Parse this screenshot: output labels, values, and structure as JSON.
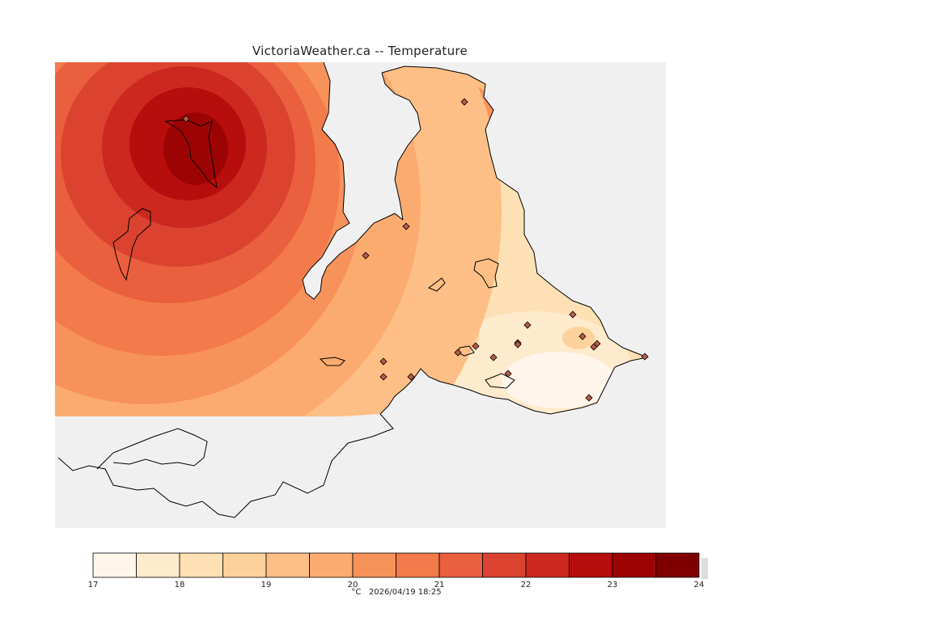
{
  "title": "VictoriaWeather.ca -- Temperature",
  "caption": {
    "unit": "°C",
    "timestamp": "2026/04/19 18:25"
  },
  "legend": {
    "min": 17,
    "max": 24,
    "step": 0.5,
    "tick_labels": [
      "17",
      "18",
      "19",
      "20",
      "21",
      "22",
      "23",
      "24"
    ],
    "colors": [
      "#fff5eb",
      "#feeacc",
      "#fde0b4",
      "#fdd19b",
      "#fdbf85",
      "#fcab70",
      "#f8925b",
      "#f27a4b",
      "#ea5f3d",
      "#db4330",
      "#cc2820",
      "#b80d0d",
      "#9c0404",
      "#7e0000"
    ]
  },
  "map": {
    "background_color": "#f0f0f0",
    "station_count": 20
  }
}
